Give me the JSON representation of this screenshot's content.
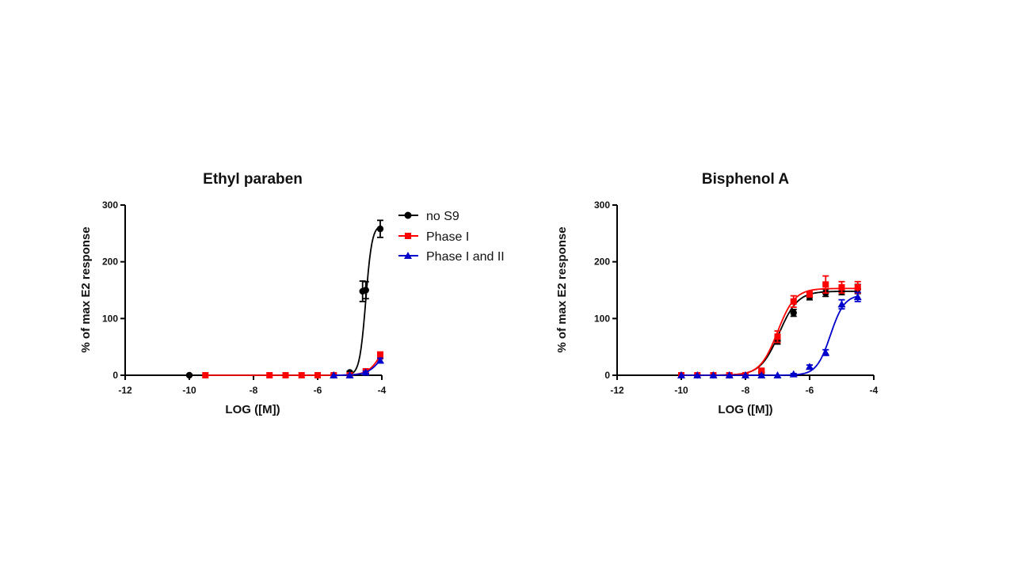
{
  "chart_data": [
    {
      "type": "line",
      "title": "Ethyl paraben",
      "xlabel": "LOG ([M])",
      "ylabel": "% of max E2 response",
      "xlim": [
        -12,
        -4
      ],
      "ylim": [
        0,
        300
      ],
      "xticks": [
        -12,
        -10,
        -8,
        -6,
        -4
      ],
      "yticks": [
        0,
        100,
        200,
        300
      ],
      "legend_position": "right",
      "series": [
        {
          "name": "no S9",
          "color": "#000000",
          "marker": "circle",
          "x": [
            -10,
            -5.5,
            -5.0,
            -4.6,
            -4.5,
            -4.05
          ],
          "y": [
            0,
            0,
            5,
            148,
            150,
            258
          ],
          "err": [
            0,
            0,
            2,
            18,
            15,
            15
          ],
          "fit": {
            "bottom": 0,
            "top": 265,
            "logEC50": -4.5,
            "hill": 4.5
          }
        },
        {
          "name": "Phase I",
          "color": "#ff0000",
          "marker": "square",
          "x": [
            -9.5,
            -7.5,
            -7.0,
            -6.5,
            -6.0,
            -5.5,
            -5.0,
            -4.5,
            -4.05
          ],
          "y": [
            0,
            0,
            0,
            0,
            0,
            0,
            0,
            7,
            35
          ],
          "err": [
            0,
            0,
            0,
            0,
            0,
            0,
            0,
            3,
            6
          ],
          "fit": {
            "bottom": 0,
            "top": 90,
            "logEC50": -3.95,
            "hill": 2.0
          }
        },
        {
          "name": "Phase I and II",
          "color": "#0000cc",
          "marker": "triangle",
          "x": [
            -5.5,
            -5.0,
            -4.5,
            -4.05
          ],
          "y": [
            0,
            0,
            5,
            26
          ],
          "err": [
            0,
            0,
            2,
            4
          ],
          "fit": {
            "bottom": 0,
            "top": 60,
            "logEC50": -4.0,
            "hill": 2.0
          }
        }
      ]
    },
    {
      "type": "line",
      "title": "Bisphenol A",
      "xlabel": "LOG ([M])",
      "ylabel": "% of max E2 response",
      "xlim": [
        -12,
        -4
      ],
      "ylim": [
        0,
        300
      ],
      "xticks": [
        -12,
        -10,
        -8,
        -6,
        -4
      ],
      "yticks": [
        0,
        100,
        200,
        300
      ],
      "series": [
        {
          "name": "no S9",
          "color": "#000000",
          "marker": "circle",
          "x": [
            -10,
            -9.5,
            -9,
            -8.5,
            -8,
            -7.5,
            -7,
            -6.5,
            -6,
            -5.5,
            -5,
            -4.5
          ],
          "y": [
            0,
            0,
            0,
            0,
            0,
            5,
            60,
            110,
            138,
            145,
            148,
            152
          ],
          "err": [
            0,
            0,
            0,
            0,
            0,
            2,
            5,
            6,
            5,
            6,
            6,
            8
          ],
          "fit": {
            "bottom": 0,
            "top": 148,
            "logEC50": -6.95,
            "hill": 1.5
          }
        },
        {
          "name": "Phase I",
          "color": "#ff0000",
          "marker": "square",
          "x": [
            -10,
            -9.5,
            -9,
            -8.5,
            -8,
            -7.5,
            -7,
            -6.5,
            -6,
            -5.5,
            -5,
            -4.5
          ],
          "y": [
            0,
            0,
            0,
            0,
            0,
            8,
            68,
            130,
            143,
            160,
            155,
            155
          ],
          "err": [
            0,
            0,
            0,
            0,
            0,
            3,
            10,
            10,
            5,
            15,
            10,
            10
          ],
          "fit": {
            "bottom": 0,
            "top": 153,
            "logEC50": -7.0,
            "hill": 1.6
          }
        },
        {
          "name": "Phase I and II",
          "color": "#0000cc",
          "marker": "triangle",
          "x": [
            -10,
            -9.5,
            -9,
            -8.5,
            -8,
            -7.5,
            -7,
            -6.5,
            -6,
            -5.5,
            -5,
            -4.5
          ],
          "y": [
            0,
            0,
            0,
            0,
            0,
            0,
            0,
            2,
            15,
            40,
            125,
            138
          ],
          "err": [
            0,
            0,
            0,
            0,
            0,
            0,
            0,
            1,
            3,
            5,
            8,
            8
          ],
          "fit": {
            "bottom": 0,
            "top": 142,
            "logEC50": -5.35,
            "hill": 2.0
          }
        }
      ]
    }
  ]
}
